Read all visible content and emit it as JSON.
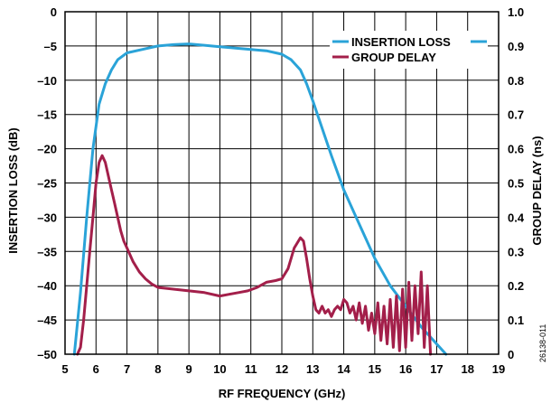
{
  "chart_data": {
    "type": "line",
    "xlabel": "RF FREQUENCY (GHz)",
    "ylabel_left": "INSERTION LOSS (dB)",
    "ylabel_right": "GROUP DELAY (ns)",
    "xlim": [
      5,
      19
    ],
    "ylim_left": [
      -50,
      0
    ],
    "ylim_right": [
      0,
      1.0
    ],
    "x_ticks": [
      "5",
      "6",
      "7",
      "8",
      "9",
      "10",
      "11",
      "12",
      "13",
      "14",
      "15",
      "16",
      "17",
      "18",
      "19"
    ],
    "y_left_ticks": [
      "0",
      "–5",
      "–10",
      "–15",
      "–20",
      "–25",
      "–30",
      "–35",
      "–40",
      "–45",
      "–50"
    ],
    "y_right_ticks": [
      "1.0",
      "0.9",
      "0.8",
      "0.7",
      "0.6",
      "0.5",
      "0.4",
      "0.3",
      "0.2",
      "0.1",
      "0"
    ],
    "grid": true,
    "legend_position": "top-right",
    "figure_id": "26138-011",
    "series": [
      {
        "name": "INSERTION LOSS",
        "axis": "left",
        "color": "#2aa3d8",
        "x": [
          5.3,
          5.5,
          5.7,
          5.9,
          6.1,
          6.3,
          6.5,
          6.7,
          7.0,
          7.5,
          8.0,
          8.5,
          9.0,
          9.5,
          10.0,
          10.5,
          11.0,
          11.5,
          12.0,
          12.3,
          12.6,
          12.8,
          13.0,
          13.3,
          13.6,
          14.0,
          14.5,
          15.0,
          15.5,
          16.0,
          16.5,
          17.0,
          17.3
        ],
        "y": [
          -50,
          -41,
          -30,
          -20,
          -13.5,
          -10.5,
          -8.5,
          -7,
          -6,
          -5.5,
          -5,
          -4.8,
          -4.7,
          -4.9,
          -5.1,
          -5.3,
          -5.5,
          -5.7,
          -6.2,
          -7.0,
          -8.5,
          -10.5,
          -13,
          -17,
          -21,
          -26,
          -31,
          -36,
          -40,
          -43,
          -46,
          -48.5,
          -50
        ]
      },
      {
        "name": "GROUP DELAY",
        "axis": "right",
        "color": "#a31f4a",
        "x": [
          5.4,
          5.5,
          5.6,
          5.7,
          5.8,
          5.9,
          6.0,
          6.1,
          6.2,
          6.3,
          6.4,
          6.5,
          6.6,
          6.7,
          6.8,
          6.9,
          7.0,
          7.2,
          7.4,
          7.6,
          7.8,
          8.0,
          8.5,
          9.0,
          9.5,
          10.0,
          10.3,
          10.6,
          10.9,
          11.2,
          11.5,
          11.8,
          12.0,
          12.2,
          12.4,
          12.6,
          12.7,
          12.8,
          12.9,
          13.0,
          13.1,
          13.2,
          13.3,
          13.4,
          13.5,
          13.6,
          13.7,
          13.8,
          13.9,
          14.0,
          14.1,
          14.2,
          14.3,
          14.4,
          14.5,
          14.6,
          14.7,
          14.8,
          14.9,
          15.0,
          15.1,
          15.2,
          15.3,
          15.4,
          15.5,
          15.6,
          15.7,
          15.8,
          15.9,
          16.0,
          16.1,
          16.2,
          16.3,
          16.4,
          16.5,
          16.6,
          16.7,
          16.8
        ],
        "y": [
          0.0,
          0.02,
          0.1,
          0.2,
          0.3,
          0.4,
          0.5,
          0.56,
          0.58,
          0.56,
          0.52,
          0.48,
          0.44,
          0.4,
          0.36,
          0.33,
          0.31,
          0.27,
          0.24,
          0.22,
          0.205,
          0.195,
          0.19,
          0.185,
          0.18,
          0.17,
          0.175,
          0.18,
          0.185,
          0.195,
          0.21,
          0.215,
          0.22,
          0.25,
          0.31,
          0.34,
          0.33,
          0.28,
          0.22,
          0.17,
          0.13,
          0.12,
          0.14,
          0.12,
          0.13,
          0.11,
          0.13,
          0.14,
          0.13,
          0.16,
          0.15,
          0.12,
          0.14,
          0.1,
          0.15,
          0.09,
          0.14,
          0.07,
          0.12,
          0.06,
          0.15,
          0.04,
          0.14,
          0.03,
          0.16,
          0.02,
          0.17,
          0.01,
          0.19,
          0.02,
          0.21,
          0.04,
          0.2,
          0.06,
          0.24,
          0.02,
          0.2,
          0.0
        ]
      }
    ]
  }
}
